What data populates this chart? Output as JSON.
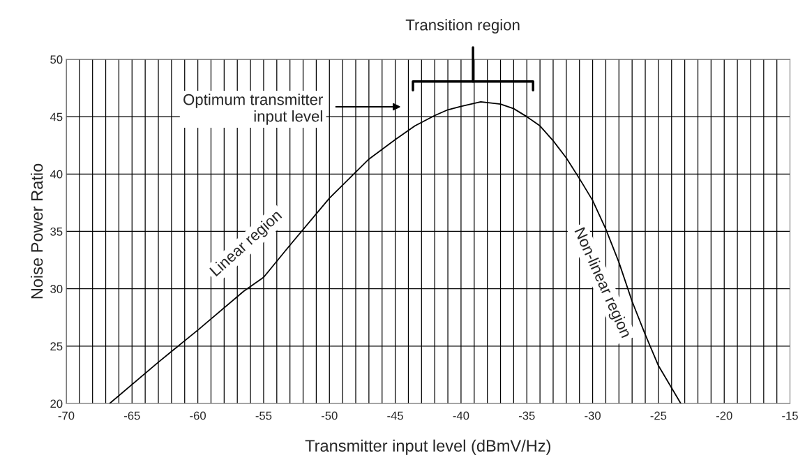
{
  "chart_data": {
    "type": "line",
    "xlabel": "Transmitter input level (dBmV/Hz)",
    "ylabel": "Noise Power Ratio",
    "x": [
      -66.7,
      -63,
      -60,
      -56.5,
      -55,
      -53,
      -50,
      -47,
      -45,
      -43.5,
      -42,
      -41,
      -40,
      -38.5,
      -37,
      -36,
      -35,
      -34,
      -33,
      -32,
      -31,
      -30,
      -29,
      -28,
      -27,
      -26,
      -25,
      -23.3
    ],
    "series": [
      {
        "color": "#000000",
        "values": [
          20,
          23.6,
          26.4,
          29.8,
          31.0,
          33.8,
          37.9,
          41.3,
          43.0,
          44.2,
          45.1,
          45.6,
          45.9,
          46.3,
          46.1,
          45.7,
          45.0,
          44.2,
          42.9,
          41.4,
          39.6,
          37.7,
          35.2,
          32.3,
          28.9,
          26.0,
          23.3,
          20
        ]
      }
    ],
    "xlim": [
      -70,
      -15
    ],
    "ylim": [
      20,
      50
    ],
    "xticks": [
      -70,
      -65,
      -60,
      -55,
      -50,
      -45,
      -40,
      -35,
      -30,
      -25,
      -20,
      -15
    ],
    "yticks": [
      20,
      25,
      30,
      35,
      40,
      45,
      50
    ],
    "grid": true,
    "marker": "none",
    "line_style": "solid",
    "annotations": [
      "Transition region",
      "Optimum transmitter\ninput level",
      {
        "text": "Linear region",
        "x": -55,
        "y": 31
      },
      {
        "text": "Non-linear region",
        "x": -28,
        "y": 32.3
      }
    ]
  }
}
